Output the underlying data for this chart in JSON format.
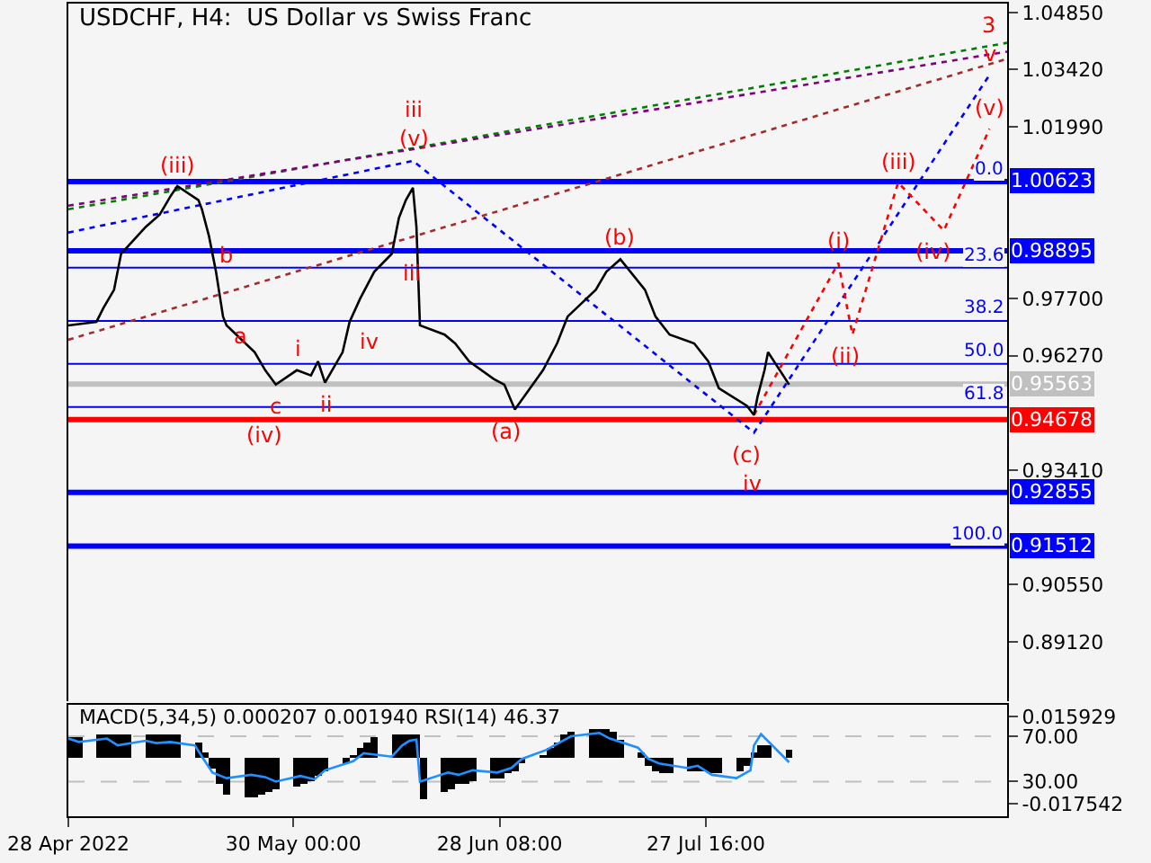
{
  "chart_data": [
    {
      "type": "line",
      "title": "USDCHF, H4:  US Dollar vs Swiss Franc",
      "tick_labels": "y",
      "xlim": [
        "2022-04-28T00:00",
        "2022-09-08T12:00"
      ],
      "xticks": [
        {
          "value": "2022-04-28T00:00",
          "label": null
        },
        {
          "value": "2022-05-30T00:00",
          "label": null
        },
        {
          "value": "2022-06-28T08:00",
          "label": null
        },
        {
          "value": "2022-07-27T16:00",
          "label": null
        }
      ],
      "ylim": [
        0.8764,
        1.0507
      ],
      "yticks": [
        {
          "value": 1.0485,
          "label": "1.04850"
        },
        {
          "value": 1.0342,
          "label": "1.03420"
        },
        {
          "value": 1.0199,
          "label": "1.01990"
        },
        {
          "value": 0.977,
          "label": "0.97700"
        },
        {
          "value": 0.9627,
          "label": "0.96270"
        },
        {
          "value": 0.9341,
          "label": "0.93410"
        },
        {
          "value": 0.9055,
          "label": "0.90550"
        },
        {
          "value": 0.8912,
          "label": "0.89120"
        }
      ],
      "series": [
        {
          "color": "#008000",
          "line_style": "dotted",
          "x": [
            "2022-04-28T00:00",
            "2022-09-08T12:00"
          ],
          "values": [
            0.9993,
            1.0409
          ]
        },
        {
          "color": "#800080",
          "line_style": "dotted",
          "x": [
            "2022-04-28T00:00",
            "2022-09-08T12:00"
          ],
          "values": [
            1.0002,
            1.0387
          ]
        },
        {
          "color": "#a52a2a",
          "line_style": "dotted",
          "x": [
            "2022-04-28T00:00",
            "2022-09-08T12:00"
          ],
          "values": [
            0.9667,
            1.0369
          ]
        },
        {
          "color": "#0000ff",
          "line_style": "dotted",
          "x": [
            "2022-04-28T00:00",
            "2022-06-16T00:00",
            "2022-08-03T12:00",
            "2022-09-06T00:00"
          ],
          "values": [
            0.9935,
            1.0114,
            0.9435,
            1.0329
          ]
        },
        {
          "color": "#ff0000",
          "line_style": "dotted",
          "x": [
            "2022-08-03T12:00",
            "2022-08-15T12:00",
            "2022-08-17T12:00",
            "2022-08-24T00:00",
            "2022-08-30T12:00",
            "2022-09-06T00:00"
          ],
          "values": [
            0.9479,
            0.9859,
            0.968,
            1.006,
            0.994,
            1.0194
          ]
        },
        {
          "color": "#000000",
          "line_style": "solid",
          "x": [
            "2022-04-28T00:00",
            "2022-05-02T00:00",
            "2022-05-03T00:00",
            "2022-05-04T12:00",
            "2022-05-05T12:00",
            "2022-05-09T00:00",
            "2022-05-11T00:00",
            "2022-05-12T12:00",
            "2022-05-13T12:00",
            "2022-05-16T12:00",
            "2022-05-17T00:00",
            "2022-05-18T00:00",
            "2022-05-19T00:00",
            "2022-05-20T00:00",
            "2022-05-20T12:00",
            "2022-05-24T12:00",
            "2022-05-26T00:00",
            "2022-05-27T12:00",
            "2022-05-30T12:00",
            "2022-06-01T12:00",
            "2022-06-02T12:00",
            "2022-06-03T12:00",
            "2022-06-06T00:00",
            "2022-06-07T00:00",
            "2022-06-08T12:00",
            "2022-06-10T12:00",
            "2022-06-13T00:00",
            "2022-06-14T00:00",
            "2022-06-15T00:00",
            "2022-06-16T00:00",
            "2022-06-16T12:00",
            "2022-06-17T00:00",
            "2022-06-20T12:00",
            "2022-06-22T00:00",
            "2022-06-24T00:00",
            "2022-06-27T12:00",
            "2022-06-29T00:00",
            "2022-06-30T12:00",
            "2022-07-04T12:00",
            "2022-07-06T12:00",
            "2022-07-08T00:00",
            "2022-07-12T00:00",
            "2022-07-13T12:00",
            "2022-07-15T12:00",
            "2022-07-19T00:00",
            "2022-07-20T12:00",
            "2022-07-22T12:00",
            "2022-07-26T00:00",
            "2022-07-28T00:00",
            "2022-07-29T12:00",
            "2022-08-02T12:00",
            "2022-08-03T12:00",
            "2022-08-04T00:00",
            "2022-08-05T00:00",
            "2022-08-05T12:00",
            "2022-08-08T12:00"
          ],
          "values": [
            0.9703,
            0.9712,
            0.9747,
            0.9792,
            0.9882,
            0.9949,
            0.998,
            1.0025,
            1.0051,
            1.0016,
            0.9993,
            0.9926,
            0.9837,
            0.9725,
            0.9703,
            0.9636,
            0.9591,
            0.9555,
            0.9591,
            0.9578,
            0.9613,
            0.956,
            0.9636,
            0.9712,
            0.977,
            0.9837,
            0.9882,
            0.9971,
            1.0016,
            1.0047,
            0.9949,
            0.9703,
            0.968,
            0.9658,
            0.9613,
            0.9569,
            0.9555,
            0.9493,
            0.9591,
            0.9658,
            0.9725,
            0.9792,
            0.9837,
            0.9868,
            0.9792,
            0.9725,
            0.968,
            0.9658,
            0.9613,
            0.9546,
            0.9502,
            0.9479,
            0.9524,
            0.9591,
            0.9636,
            0.9555
          ]
        }
      ],
      "ref_lines": [
        {
          "axis": "y",
          "value": 1.00623,
          "label": "1.00623",
          "color": "#0000ff"
        },
        {
          "axis": "y",
          "value": 0.98895,
          "label": "0.98895",
          "color": "#0000ff"
        },
        {
          "axis": "y",
          "value": 0.95563,
          "label": "0.95563",
          "color": "#c0c0c0"
        },
        {
          "axis": "y",
          "value": 0.94678,
          "label": "0.94678",
          "color": "#ff0000"
        },
        {
          "axis": "y",
          "value": 0.92855,
          "label": "0.92855",
          "color": "#0000ff"
        },
        {
          "axis": "y",
          "value": 0.91512,
          "label": "0.91512",
          "color": "#0000ff"
        },
        {
          "axis": "y",
          "value": 0.98473
        },
        {
          "axis": "y",
          "value": 0.97143
        },
        {
          "axis": "y",
          "value": 0.96068
        },
        {
          "axis": "y",
          "value": 0.94992
        }
      ],
      "annotations": [
        {
          "text": "0.0",
          "y": 1.00623
        },
        {
          "text": "23.6",
          "y": 0.98473
        },
        {
          "text": "38.2",
          "y": 0.97143
        },
        {
          "text": "50.0",
          "y": 0.96068
        },
        {
          "text": "61.8",
          "y": 0.94992
        },
        {
          "text": "100.0",
          "y": 0.91512
        },
        {
          "text": "(iii)",
          "x": "2022-05-13T12:00",
          "y": 1.0051
        },
        {
          "text": "b",
          "x": "2022-05-18T00:00",
          "y": 0.9926
        },
        {
          "text": "a",
          "x": "2022-05-20T00:00",
          "y": 0.9725
        },
        {
          "text": "c",
          "x": "2022-05-27T12:00",
          "y": 0.9555
        },
        {
          "text": "(iv)",
          "x": "2022-05-27T12:00",
          "y": 0.9555
        },
        {
          "text": "i",
          "x": "2022-05-30T12:00",
          "y": 0.9591
        },
        {
          "text": "ii",
          "x": "2022-06-03T12:00",
          "y": 0.956
        },
        {
          "text": "iv",
          "x": "2022-06-07T00:00",
          "y": 0.9712
        },
        {
          "text": "iii",
          "x": "2022-06-13T00:00",
          "y": 0.9882
        },
        {
          "text": "(v)",
          "x": "2022-06-16T00:00",
          "y": 1.0114
        },
        {
          "text": "iii",
          "x": "2022-06-16T00:00",
          "y": 1.0114
        },
        {
          "text": "(a)",
          "x": "2022-06-30T12:00",
          "y": 0.9493
        },
        {
          "text": "(b)",
          "x": "2022-07-15T12:00",
          "y": 0.9868
        },
        {
          "text": "(c)",
          "x": "2022-08-03T12:00",
          "y": 0.9435
        },
        {
          "text": "iv",
          "x": "2022-08-03T12:00",
          "y": 0.9435
        },
        {
          "text": "(i)",
          "x": "2022-08-15T12:00",
          "y": 0.9859
        },
        {
          "text": "(ii)",
          "x": "2022-08-17T12:00",
          "y": 0.968
        },
        {
          "text": "(iii)",
          "x": "2022-08-24T00:00",
          "y": 1.006
        },
        {
          "text": "(iv)",
          "x": "2022-08-30T12:00",
          "y": 0.994
        },
        {
          "text": "(v)",
          "x": "2022-09-06T00:00",
          "y": 1.0194
        },
        {
          "text": "v",
          "x": "2022-09-06T00:00",
          "y": 1.0329
        },
        {
          "text": "3",
          "x": "2022-09-06T00:00",
          "y": 1.0329
        }
      ]
    },
    {
      "type": "bar",
      "title": "MACD(5,34,5) 0.000207 0.001940 RSI(14) 46.37",
      "xlim": [
        "2022-04-28T00:00",
        "2022-09-08T12:00"
      ],
      "xticks": [
        {
          "value": "2022-04-28T00:00",
          "label": "28 Apr 2022"
        },
        {
          "value": "2022-05-30T00:00",
          "label": "30 May 00:00"
        },
        {
          "value": "2022-06-28T08:00",
          "label": "28 Jun 08:00"
        },
        {
          "value": "2022-07-27T16:00",
          "label": "27 Jul 16:00"
        }
      ],
      "ylim": [
        -0.0224,
        0.0204
      ],
      "yticks": [
        {
          "value": 0.015929,
          "label": "0.015929"
        },
        {
          "value": -0.017542,
          "label": "-0.017542"
        }
      ],
      "y2lim": [
        -0.6,
        97.8
      ],
      "y2ticks": [
        {
          "value": 70,
          "label": "70.00"
        },
        {
          "value": 30,
          "label": "30.00"
        }
      ],
      "x": [
        "2022-04-28T12:00",
        "2022-04-29T12:00",
        "2022-05-02T12:00",
        "2022-05-03T12:00",
        "2022-05-04T12:00",
        "2022-05-05T12:00",
        "2022-05-06T12:00",
        "2022-05-09T12:00",
        "2022-05-10T12:00",
        "2022-05-11T12:00",
        "2022-05-12T12:00",
        "2022-05-13T12:00",
        "2022-05-16T12:00",
        "2022-05-17T12:00",
        "2022-05-18T12:00",
        "2022-05-19T12:00",
        "2022-05-20T12:00",
        "2022-05-23T12:00",
        "2022-05-24T12:00",
        "2022-05-25T12:00",
        "2022-05-26T12:00",
        "2022-05-27T12:00",
        "2022-05-30T12:00",
        "2022-05-31T12:00",
        "2022-06-01T12:00",
        "2022-06-02T12:00",
        "2022-06-03T12:00",
        "2022-06-06T12:00",
        "2022-06-07T12:00",
        "2022-06-08T12:00",
        "2022-06-09T12:00",
        "2022-06-10T12:00",
        "2022-06-13T12:00",
        "2022-06-14T12:00",
        "2022-06-15T12:00",
        "2022-06-16T12:00",
        "2022-06-17T12:00",
        "2022-06-20T12:00",
        "2022-06-21T12:00",
        "2022-06-22T12:00",
        "2022-06-23T12:00",
        "2022-06-24T12:00",
        "2022-06-27T12:00",
        "2022-06-28T12:00",
        "2022-06-29T12:00",
        "2022-06-30T12:00",
        "2022-07-01T12:00",
        "2022-07-04T12:00",
        "2022-07-05T12:00",
        "2022-07-06T12:00",
        "2022-07-07T12:00",
        "2022-07-08T12:00",
        "2022-07-11T12:00",
        "2022-07-12T12:00",
        "2022-07-13T12:00",
        "2022-07-14T12:00",
        "2022-07-15T12:00",
        "2022-07-18T12:00",
        "2022-07-19T12:00",
        "2022-07-20T12:00",
        "2022-07-21T12:00",
        "2022-07-22T12:00",
        "2022-07-25T12:00",
        "2022-07-26T12:00",
        "2022-07-27T12:00",
        "2022-07-28T12:00",
        "2022-07-29T12:00",
        "2022-08-01T12:00",
        "2022-08-02T12:00",
        "2022-08-03T12:00",
        "2022-08-04T12:00",
        "2022-08-05T12:00",
        "2022-08-08T12:00"
      ],
      "series": [
        {
          "color": "#000000",
          "values": [
            0.008,
            0.008,
            0.009,
            0.009,
            0.009,
            0.009,
            0.009,
            0.009,
            0.009,
            0.009,
            0.009,
            0.009,
            0.006,
            0.002,
            -0.004,
            -0.01,
            -0.014,
            -0.015,
            -0.015,
            -0.014,
            -0.013,
            -0.012,
            -0.011,
            -0.01,
            -0.009,
            -0.007,
            -0.005,
            -0.002,
            0.001,
            0.004,
            0.006,
            0.008,
            0.009,
            0.009,
            0.009,
            0.009,
            -0.016,
            -0.013,
            -0.012,
            -0.01,
            -0.01,
            -0.009,
            -0.008,
            -0.008,
            -0.006,
            -0.005,
            -0.002,
            0.001,
            0.004,
            0.006,
            0.009,
            0.01,
            0.011,
            0.011,
            0.011,
            0.01,
            0.007,
            0.002,
            -0.003,
            -0.005,
            -0.006,
            -0.006,
            -0.005,
            -0.005,
            -0.005,
            -0.006,
            -0.006,
            -0.005,
            -0.003,
            0.002,
            0.005,
            0.005,
            0.003
          ]
        },
        {
          "type": "line",
          "axis": "y2",
          "color": "#1e90ff",
          "x": [
            "2022-04-28T00:00",
            "2022-04-29T12:00",
            "2022-05-03T12:00",
            "2022-05-05T00:00",
            "2022-05-09T00:00",
            "2022-05-10T12:00",
            "2022-05-12T12:00",
            "2022-05-16T00:00",
            "2022-05-17T00:00",
            "2022-05-18T12:00",
            "2022-05-20T12:00",
            "2022-05-24T00:00",
            "2022-05-26T00:00",
            "2022-05-27T12:00",
            "2022-05-31T00:00",
            "2022-06-02T00:00",
            "2022-06-03T12:00",
            "2022-06-07T12:00",
            "2022-06-09T00:00",
            "2022-06-13T00:00",
            "2022-06-14T12:00",
            "2022-06-15T12:00",
            "2022-06-16T12:00",
            "2022-06-17T00:00",
            "2022-06-21T00:00",
            "2022-06-22T12:00",
            "2022-06-24T12:00",
            "2022-06-28T00:00",
            "2022-06-30T00:00",
            "2022-07-01T12:00",
            "2022-07-05T00:00",
            "2022-07-07T00:00",
            "2022-07-08T12:00",
            "2022-07-12T12:00",
            "2022-07-14T00:00",
            "2022-07-18T00:00",
            "2022-07-19T12:00",
            "2022-07-21T00:00",
            "2022-07-25T00:00",
            "2022-07-26T12:00",
            "2022-07-28T12:00",
            "2022-08-01T00:00",
            "2022-08-03T00:00",
            "2022-08-03T12:00",
            "2022-08-04T12:00",
            "2022-08-08T12:00"
          ],
          "values": [
            68,
            65,
            68,
            62,
            66,
            64,
            65,
            62,
            52,
            38,
            33,
            36,
            34,
            30,
            35,
            32,
            40,
            48,
            55,
            52,
            62,
            66,
            67,
            30,
            38,
            36,
            40,
            38,
            42,
            50,
            58,
            65,
            70,
            73,
            68,
            60,
            50,
            46,
            42,
            44,
            36,
            33,
            40,
            62,
            72,
            47
          ]
        }
      ],
      "ref_lines": [
        {
          "axis": "y2",
          "value": 70,
          "color": "#c0c0c0",
          "line_style": "dashed"
        },
        {
          "axis": "y2",
          "value": 30,
          "color": "#c0c0c0",
          "line_style": "dashed"
        }
      ]
    }
  ]
}
